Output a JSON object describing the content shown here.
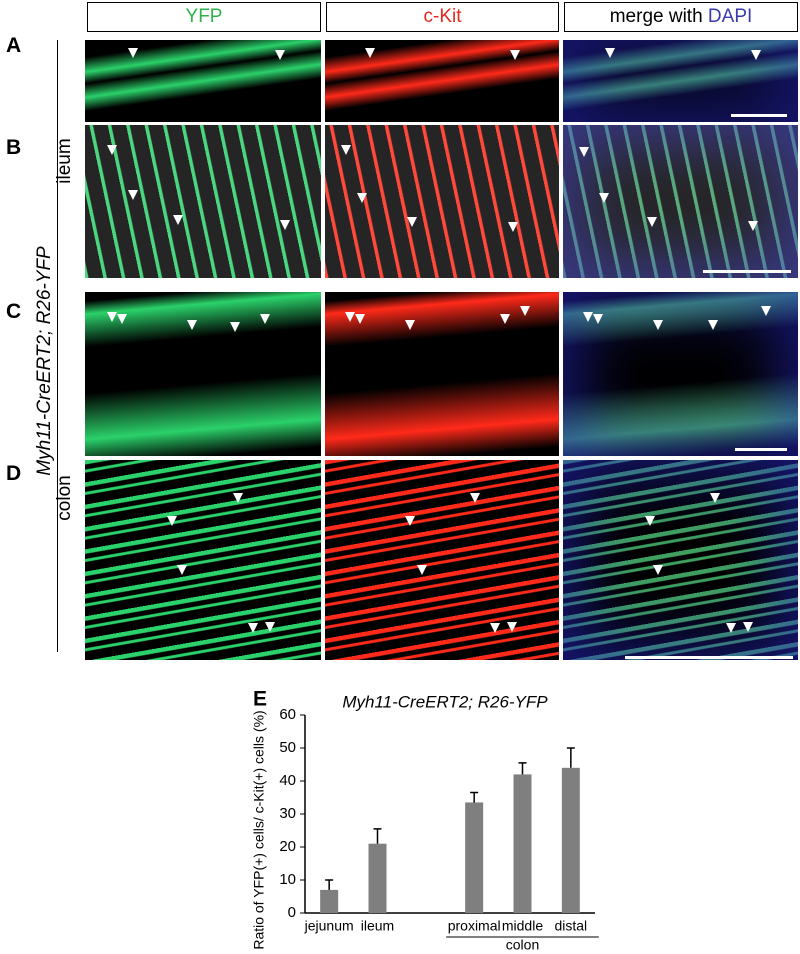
{
  "headers": {
    "yfp": "YFP",
    "ckit": "c-Kit",
    "merge": "merge with",
    "dapi": "DAPI"
  },
  "panels": [
    "A",
    "B",
    "C",
    "D"
  ],
  "genotype": "Myh11-CreERT2; R26-YFP",
  "regions": [
    "ileum",
    "colon"
  ],
  "chart_data": {
    "type": "bar",
    "label": "E",
    "title": "Myh11-CreERT2; R26-YFP",
    "ylabel": "Ratio of YFP(+) cells/ c-Kit(+) cells (%)",
    "categories": [
      "jejunum",
      "ileum",
      null,
      "proximal",
      "middle",
      "distal"
    ],
    "values": [
      7,
      21,
      null,
      33.5,
      42,
      44
    ],
    "errors": [
      3,
      4.5,
      null,
      3,
      3.5,
      6
    ],
    "group_label": "colon",
    "color": "#7f7f7f",
    "ylim": [
      0,
      60
    ],
    "yticks": [
      0,
      10,
      20,
      30,
      40,
      50,
      60
    ]
  }
}
